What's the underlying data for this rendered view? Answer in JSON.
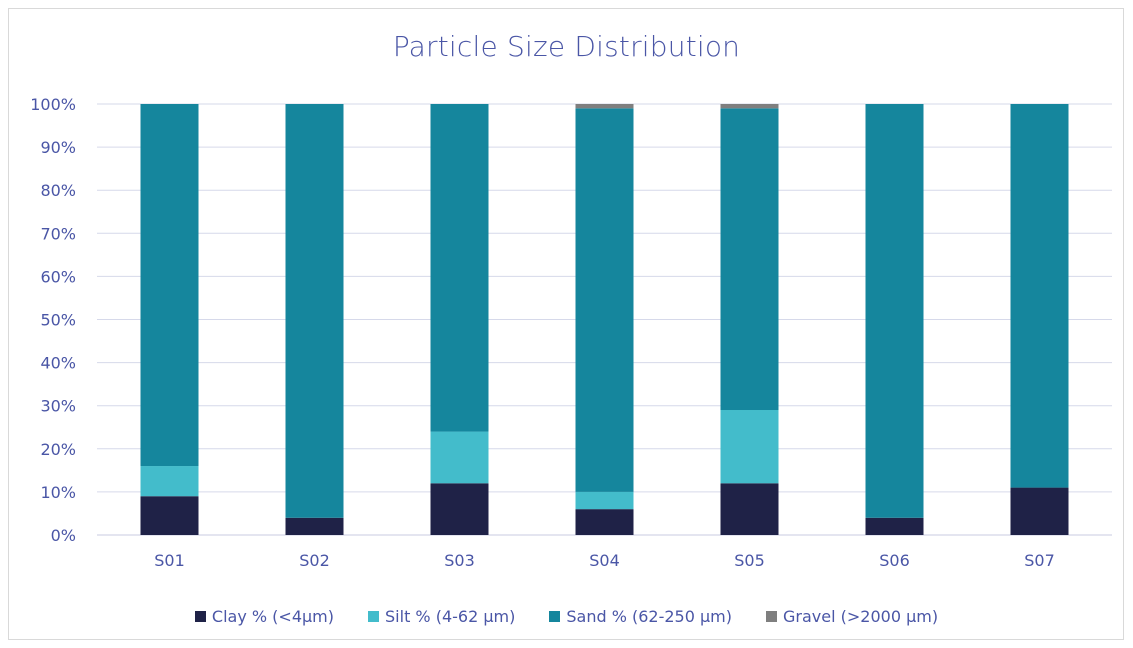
{
  "chart_data": {
    "type": "bar",
    "stacked": true,
    "title": "Particle Size Distribution",
    "xlabel": "",
    "ylabel": "",
    "ylim": [
      0,
      100
    ],
    "y_ticks": [
      "0%",
      "10%",
      "20%",
      "30%",
      "40%",
      "50%",
      "60%",
      "70%",
      "80%",
      "90%",
      "100%"
    ],
    "grid": true,
    "legend": "bottom",
    "categories": [
      "S01",
      "S02",
      "S03",
      "S04",
      "S05",
      "S06",
      "S07"
    ],
    "series": [
      {
        "name": "Clay % (<4µm)",
        "color": "#1f2247",
        "values": [
          9,
          4,
          12,
          6,
          12,
          4,
          11
        ]
      },
      {
        "name": "Silt % (4-62 µm)",
        "color": "#43bccb",
        "values": [
          7,
          0,
          12,
          4,
          17,
          0,
          0
        ]
      },
      {
        "name": "Sand % (62-250 µm)",
        "color": "#15869d",
        "values": [
          84,
          96,
          76,
          89,
          70,
          96,
          89
        ]
      },
      {
        "name": "Gravel (>2000 µm)",
        "color": "#7f7f7f",
        "values": [
          0,
          0,
          0,
          1,
          1,
          0,
          0
        ]
      }
    ]
  }
}
